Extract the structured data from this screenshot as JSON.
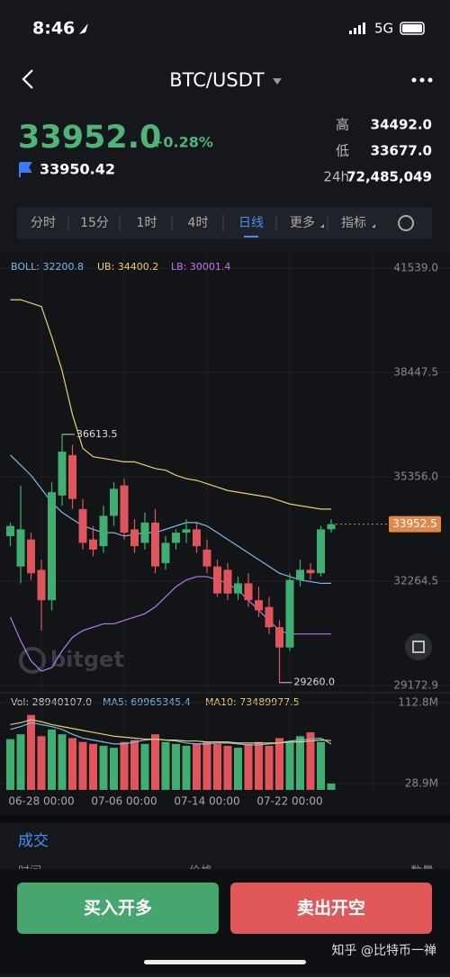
{
  "status": {
    "time": "8:46",
    "network": "5G"
  },
  "header": {
    "title": "BTC/USDT"
  },
  "ticker": {
    "price": "33952.0",
    "change": "+0.28%",
    "index_price": "33950.42",
    "stats": [
      {
        "label": "高",
        "value": "34492.0"
      },
      {
        "label": "低",
        "value": "33677.0"
      },
      {
        "label": "24h",
        "value": "72,485,049"
      }
    ]
  },
  "tabs": [
    "分时",
    "15分",
    "1时",
    "4时",
    "日线",
    "更多",
    "指标"
  ],
  "active_tab": 4,
  "chart": {
    "type": "candlestick",
    "legend": [
      {
        "text": "BOLL: 32200.8",
        "color": "#7cb9e8"
      },
      {
        "text": "UB: 34400.2",
        "color": "#e6cf74"
      },
      {
        "text": "LB: 30001.4",
        "color": "#b47ce8"
      }
    ],
    "ylim": [
      29172.9,
      41539.0
    ],
    "yticks": [
      {
        "value": 41539.0,
        "label": "41539.0"
      },
      38447.5,
      {
        "value": 35356.0,
        "label": "35356.0"
      },
      32264.5,
      29172.9
    ],
    "up_color": "#3fae70",
    "down_color": "#e0555b",
    "categories": [
      null,
      null,
      null,
      "06-28 00:00",
      null,
      null,
      null,
      null,
      null,
      null,
      null,
      "07-06 00:00",
      null,
      null,
      null,
      null,
      null,
      null,
      null,
      "07-14 00:00",
      null,
      null,
      null,
      null,
      null,
      null,
      null,
      "07-22 00:00",
      null,
      null,
      null,
      null
    ],
    "candles": [
      [
        33600,
        34000,
        33300,
        33900
      ],
      [
        32700,
        35100,
        32200,
        33800
      ],
      [
        33500,
        33700,
        32300,
        32500
      ],
      [
        32600,
        32900,
        30800,
        31700
      ],
      [
        31700,
        35200,
        31400,
        34900
      ],
      [
        34800,
        36613.5,
        34500,
        36100
      ],
      [
        36000,
        36300,
        34400,
        34700
      ],
      [
        34400,
        34700,
        33200,
        33400
      ],
      [
        33500,
        33900,
        33000,
        33200
      ],
      [
        33300,
        34500,
        33100,
        34200
      ],
      [
        34200,
        35200,
        33900,
        35000
      ],
      [
        35100,
        35300,
        33500,
        33700
      ],
      [
        33800,
        34100,
        33100,
        33300
      ],
      [
        33400,
        34300,
        33200,
        34000
      ],
      [
        34000,
        34400,
        32500,
        32700
      ],
      [
        32800,
        33600,
        32600,
        33400
      ],
      [
        33400,
        33800,
        33200,
        33700
      ],
      [
        33700,
        34100,
        33400,
        33800
      ],
      [
        33800,
        34000,
        33100,
        33300
      ],
      [
        33200,
        33500,
        32500,
        32700
      ],
      [
        32700,
        32900,
        31800,
        31900
      ],
      [
        32600,
        32800,
        31700,
        31900
      ],
      [
        31900,
        32400,
        31700,
        32200
      ],
      [
        32200,
        32500,
        31500,
        31700
      ],
      [
        31700,
        32100,
        31200,
        31400
      ],
      [
        31500,
        31800,
        30700,
        30900
      ],
      [
        30900,
        31100,
        29260.0,
        30300
      ],
      [
        30300,
        32500,
        30200,
        32300
      ],
      [
        32300,
        32900,
        32100,
        32600
      ],
      [
        32600,
        32800,
        32300,
        32500
      ],
      [
        32500,
        33900,
        32400,
        33800
      ],
      [
        33800,
        34100,
        33700,
        33952.5
      ]
    ],
    "boll": [
      {
        "name": "UB",
        "color": "#e6cf74",
        "values": [
          40600,
          40600,
          40500,
          40400,
          39500,
          38500,
          37200,
          36200,
          35950,
          35900,
          35850,
          35800,
          35800,
          35700,
          35600,
          35550,
          35400,
          35300,
          35250,
          35150,
          35050,
          34950,
          34900,
          34850,
          34800,
          34750,
          34650,
          34550,
          34500,
          34450,
          34400,
          34400.2
        ]
      },
      {
        "name": "BOLL",
        "color": "#7cb9e8",
        "values": [
          36000,
          35700,
          35400,
          35000,
          34600,
          34300,
          34100,
          33900,
          33800,
          33700,
          33700,
          33600,
          33650,
          33700,
          33700,
          33800,
          33900,
          34000,
          34000,
          33900,
          33700,
          33500,
          33300,
          33100,
          32900,
          32700,
          32500,
          32400,
          32300,
          32250,
          32200,
          32200.8
        ]
      },
      {
        "name": "LB",
        "color": "#b47ce8",
        "values": [
          31200,
          30500,
          29900,
          29600,
          29700,
          30200,
          30600,
          30800,
          30900,
          31000,
          31000,
          31100,
          31200,
          31300,
          31500,
          31800,
          32100,
          32300,
          32400,
          32400,
          32300,
          32200,
          32000,
          31700,
          31400,
          31100,
          30800,
          30700,
          30700,
          30700,
          30700,
          30700
        ]
      }
    ],
    "current_price": 33952.5,
    "high_marker": 36613.5,
    "low_marker": {
      "value": 29260.0,
      "label": "29260.0"
    },
    "watermark": "bitget"
  },
  "volume": {
    "legend": [
      {
        "text": "Vol: 28940107.0",
        "color": "#cccccc"
      },
      {
        "text": "MA5: 69965345.4",
        "color": "#7cb9e8"
      },
      {
        "text": "MA10: 73489977.5",
        "color": "#e6cf74"
      }
    ],
    "yticks": [
      {
        "value": 112800000,
        "label": "112.8M"
      },
      {
        "value": 28900000,
        "label": "28.9M"
      }
    ],
    "values": [
      75000000,
      80000000,
      100000000,
      78000000,
      85000000,
      80000000,
      76000000,
      72000000,
      70000000,
      68000000,
      66000000,
      72000000,
      74000000,
      70000000,
      80000000,
      72000000,
      70000000,
      68000000,
      70000000,
      72000000,
      70000000,
      68000000,
      66000000,
      70000000,
      72000000,
      68000000,
      76000000,
      72000000,
      78000000,
      82000000,
      72000000,
      28940107.0
    ],
    "ma": [
      {
        "name": "MA5",
        "color": "#7cb9e8",
        "values": [
          85000000,
          88000000,
          92000000,
          90000000,
          88000000,
          85000000,
          80000000,
          76000000,
          74000000,
          72000000,
          70000000,
          70000000,
          72000000,
          74000000,
          75000000,
          74000000,
          73000000,
          71000000,
          70000000,
          70000000,
          71000000,
          71000000,
          70000000,
          69000000,
          69000000,
          70000000,
          71000000,
          73000000,
          74000000,
          75000000,
          76000000,
          69965345.4
        ]
      },
      {
        "name": "MA10",
        "color": "#e6cf74",
        "values": [
          90000000,
          92000000,
          95000000,
          93000000,
          90000000,
          88000000,
          86000000,
          84000000,
          82000000,
          80000000,
          78000000,
          77000000,
          76000000,
          75000000,
          75000000,
          74000000,
          74000000,
          73000000,
          73000000,
          72000000,
          72000000,
          72000000,
          71000000,
          71000000,
          71000000,
          71000000,
          71000000,
          72000000,
          72000000,
          73000000,
          74000000,
          73489977.5
        ]
      }
    ]
  },
  "trades": {
    "title": "成交",
    "columns": [
      "时间",
      "价格",
      "数量"
    ]
  },
  "buttons": {
    "buy": "买入开多",
    "sell": "卖出开空"
  },
  "footer": {
    "watermark": "知乎 @比特币一禅"
  }
}
